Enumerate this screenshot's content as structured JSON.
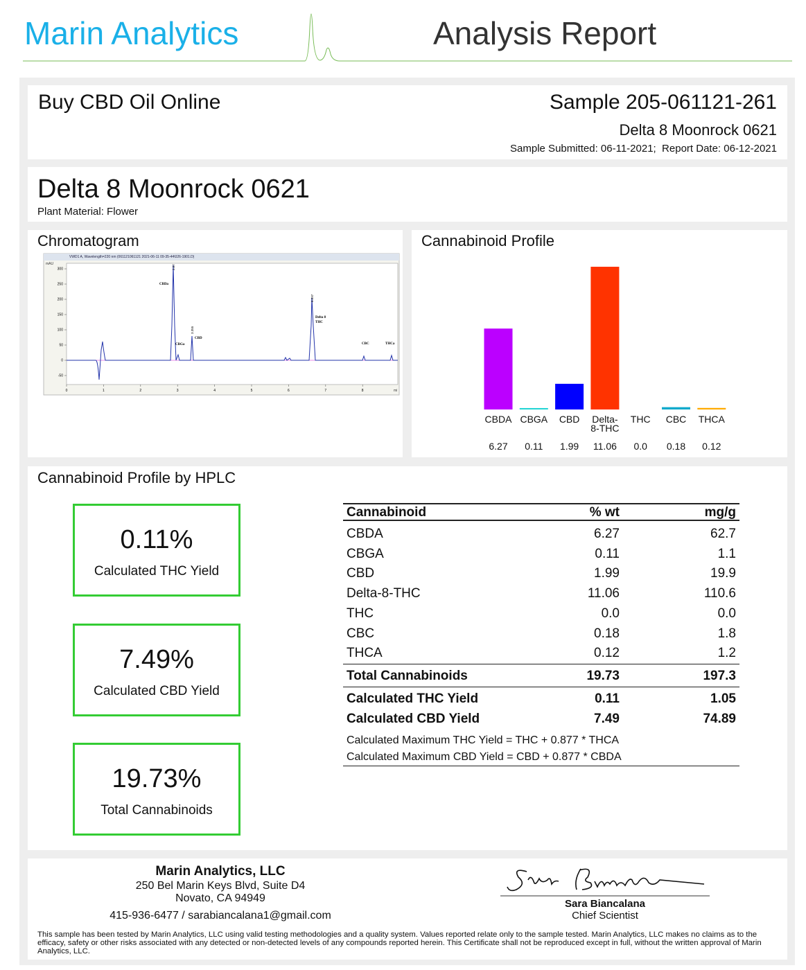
{
  "header": {
    "brand": "Marin Analytics",
    "title": "Analysis Report"
  },
  "client": {
    "name": "Buy CBD Oil Online",
    "sample": "Sample 205-061121-261",
    "product": "Delta 8 Moonrock 0621",
    "dates": "Sample Submitted: 06-11-2021;  Report Date: 06-12-2021"
  },
  "product": {
    "name": "Delta 8 Moonrock 0621",
    "material": "Plant Material: Flower"
  },
  "chromatogram": {
    "title": "Chromatogram",
    "caption": "VWD1 A, Wavelength=220 nm (061121061121 2021-06-11 09-35-44\\026-1901.D)",
    "unit": "mAU",
    "xunit": "mi",
    "xticks": [
      0,
      1,
      2,
      3,
      4,
      5,
      6,
      7,
      8
    ],
    "yticks": [
      -50,
      0,
      50,
      100,
      150,
      200,
      250,
      300
    ],
    "peaks": [
      "CBDa",
      "CBGa",
      "CBD",
      "Delta 8",
      "THC",
      "CBC",
      "THCa"
    ],
    "times": [
      "2.87",
      "3.355",
      "6.597"
    ]
  },
  "chart_data": {
    "type": "bar",
    "title": "Cannabinoid Profile",
    "categories": [
      "CBDA",
      "CBGA",
      "CBD",
      "Delta-8-THC",
      "THC",
      "CBC",
      "THCA"
    ],
    "values": [
      6.27,
      0.11,
      1.99,
      11.06,
      0.0,
      0.18,
      0.12
    ],
    "value_labels": [
      "6.27",
      "0.11",
      "1.99",
      "11.06",
      "0.0",
      "0.18",
      "0.12"
    ],
    "colors": [
      "#bb00ff",
      "#22d4d4",
      "#0000ff",
      "#ff3300",
      "#888888",
      "#11aacc",
      "#ffaa00"
    ]
  },
  "hplc": {
    "title": "Cannabinoid Profile by HPLC",
    "boxes": [
      {
        "value": "0.11%",
        "label": "Calculated THC Yield"
      },
      {
        "value": "7.49%",
        "label": "Calculated CBD Yield"
      },
      {
        "value": "19.73%",
        "label": "Total Cannabinoids"
      }
    ]
  },
  "table": {
    "header": [
      "Cannabinoid",
      "% wt",
      "mg/g"
    ],
    "rows": [
      [
        "CBDA",
        "6.27",
        "62.7"
      ],
      [
        "CBGA",
        "0.11",
        "1.1"
      ],
      [
        "CBD",
        "1.99",
        "19.9"
      ],
      [
        "Delta-8-THC",
        "11.06",
        "110.6"
      ],
      [
        "THC",
        "0.0",
        "0.0"
      ],
      [
        "CBC",
        "0.18",
        "1.8"
      ],
      [
        "THCA",
        "0.12",
        "1.2"
      ]
    ],
    "total": [
      "Total Cannabinoids",
      "19.73",
      "197.3"
    ],
    "yields": [
      [
        "Calculated THC Yield",
        "0.11",
        "1.05"
      ],
      [
        "Calculated CBD Yield",
        "7.49",
        "74.89"
      ]
    ],
    "notes": [
      "Calculated Maximum THC Yield = THC + 0.877 * THCA",
      "Calculated Maximum CBD Yield = CBD + 0.877 * CBDA"
    ]
  },
  "footer": {
    "company": "Marin Analytics, LLC",
    "address1": "250 Bel Marin Keys Blvd, Suite D4",
    "address2": "Novato, CA 94949",
    "contact": "415-936-6477 / sarabiancalana1@gmail.com",
    "signer": "Sara Biancalana",
    "role": "Chief Scientist",
    "disclaimer": "This sample has been tested by Marin Analytics, LLC using valid testing methodologies and a quality system.  Values reported relate only to the sample tested.  Marin Analytics, LLC makes no claims as to the efficacy, safety or other risks associated with any detected or non-detected levels of any compounds reported herein.  This Certificate shall not be reproduced except in full, without the written approval of Marin Analytics, LLC."
  }
}
